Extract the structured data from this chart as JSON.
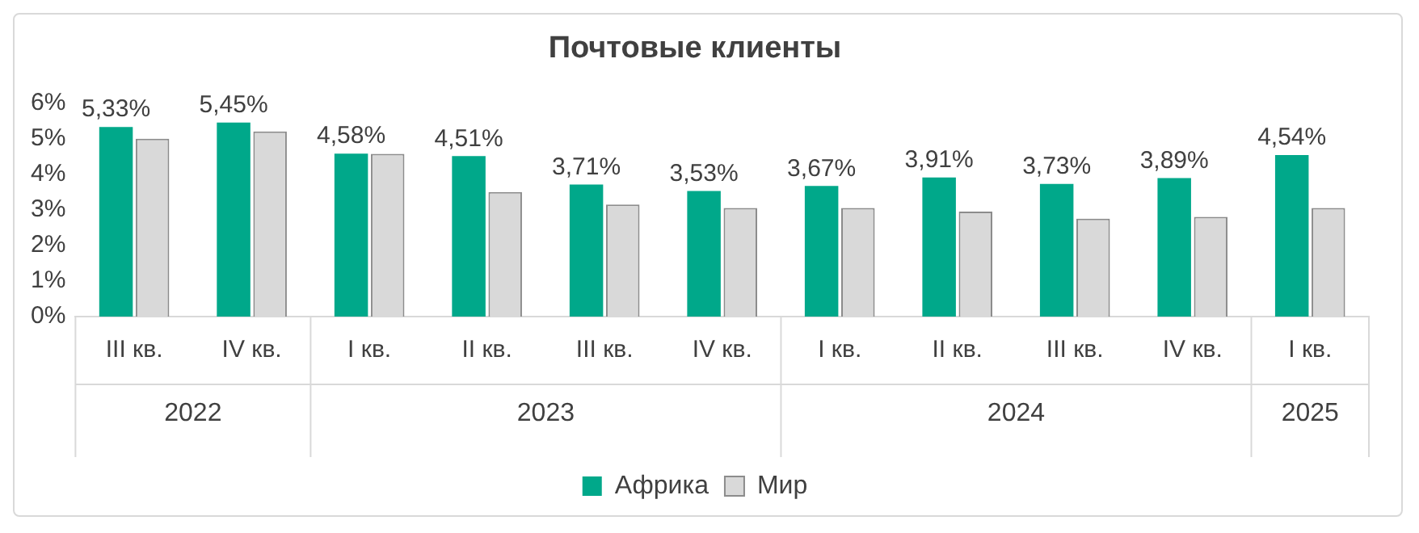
{
  "chart_data": {
    "type": "bar",
    "title": "Почтовые клиенты",
    "categories": [
      "III кв.",
      "IV кв.",
      "I кв.",
      "II кв.",
      "III кв.",
      "IV кв.",
      "I кв.",
      "II кв.",
      "III кв.",
      "IV кв.",
      "I кв."
    ],
    "series": [
      {
        "name": "Африка",
        "color": "#00a88a",
        "values": [
          5.33,
          5.45,
          4.58,
          4.51,
          3.71,
          3.53,
          3.67,
          3.91,
          3.73,
          3.89,
          4.54
        ],
        "value_labels": [
          "5,33%",
          "5,45%",
          "4,58%",
          "4,51%",
          "3,71%",
          "3,53%",
          "3,67%",
          "3,91%",
          "3,73%",
          "3,89%",
          "4,54%"
        ]
      },
      {
        "name": "Мир",
        "color": "#d9d9d9",
        "values": [
          5.0,
          5.2,
          4.57,
          3.5,
          3.15,
          3.05,
          3.05,
          2.95,
          2.75,
          2.8,
          3.05
        ]
      }
    ],
    "annotations": [
      "2022",
      "2023",
      "2024",
      "2025"
    ],
    "ylim": [
      0,
      6
    ],
    "yticks": [
      {
        "value": 0,
        "label": "0%"
      },
      {
        "value": 1,
        "label": "1%"
      },
      {
        "value": 2,
        "label": "2%"
      },
      {
        "value": 3,
        "label": "3%"
      },
      {
        "value": 4,
        "label": "4%"
      },
      {
        "value": 5,
        "label": "5%"
      },
      {
        "value": 6,
        "label": "6%"
      }
    ],
    "grid": false,
    "legend": "bottom"
  }
}
